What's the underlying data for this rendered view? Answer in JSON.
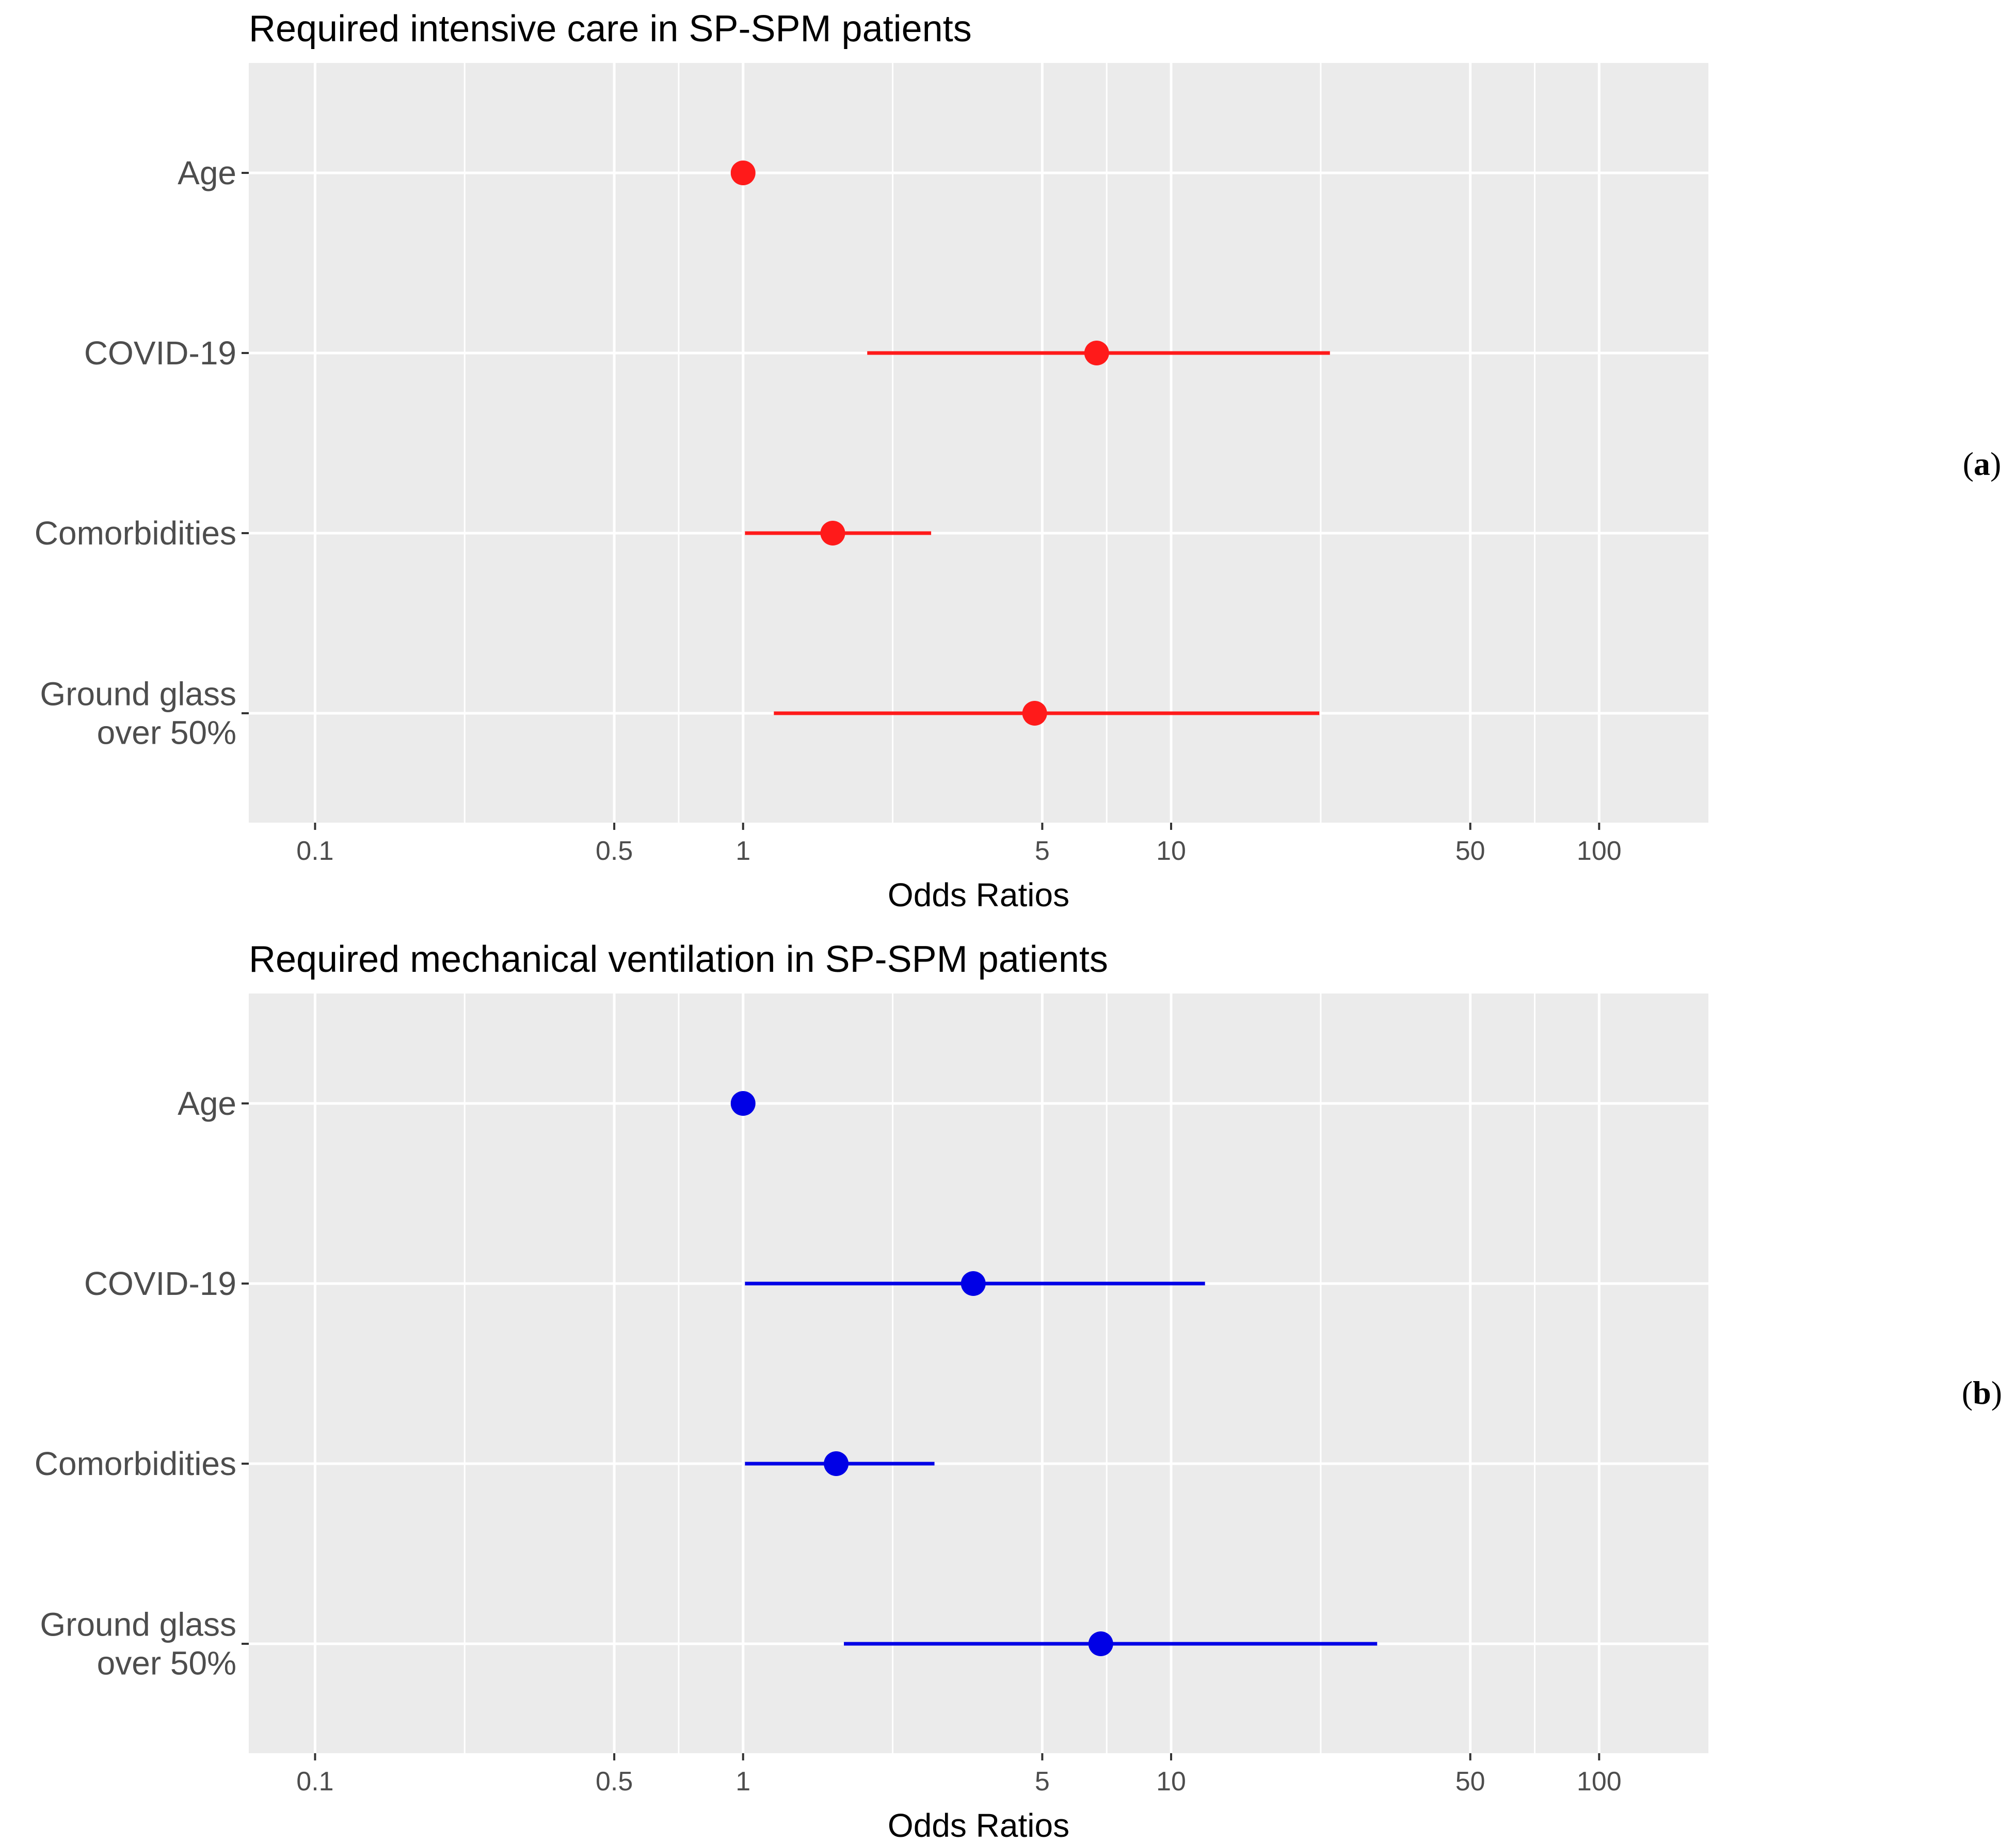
{
  "chart_data": [
    {
      "type": "forest",
      "panel_label": "a",
      "title": "Required intensive care in SP-SPM patients",
      "xlabel": "Odds Ratios",
      "xscale": "log10",
      "xlim": [
        0.07,
        180
      ],
      "xticks": [
        0.1,
        0.5,
        1,
        5,
        10,
        50,
        100
      ],
      "xtick_labels": [
        "0.1",
        "0.5",
        "1",
        "5",
        "10",
        "50",
        "100"
      ],
      "color": "#ff1a1a",
      "grid": true,
      "rows": [
        {
          "label": [
            "Age"
          ],
          "or": 1.0,
          "lo": 1.0,
          "hi": 1.0
        },
        {
          "label": [
            "COVID-19"
          ],
          "or": 6.7,
          "lo": 1.95,
          "hi": 23.5
        },
        {
          "label": [
            "Comorbidities"
          ],
          "or": 1.62,
          "lo": 1.01,
          "hi": 2.75
        },
        {
          "label": [
            "Ground glass",
            "over 50%"
          ],
          "or": 4.8,
          "lo": 1.18,
          "hi": 22.2
        }
      ]
    },
    {
      "type": "forest",
      "panel_label": "b",
      "title": "Required mechanical ventilation in SP-SPM patients",
      "xlabel": "Odds Ratios",
      "xscale": "log10",
      "xlim": [
        0.07,
        180
      ],
      "xticks": [
        0.1,
        0.5,
        1,
        5,
        10,
        50,
        100
      ],
      "xtick_labels": [
        "0.1",
        "0.5",
        "1",
        "5",
        "10",
        "50",
        "100"
      ],
      "color": "#0000e6",
      "grid": true,
      "rows": [
        {
          "label": [
            "Age"
          ],
          "or": 1.0,
          "lo": 1.0,
          "hi": 1.0
        },
        {
          "label": [
            "COVID-19"
          ],
          "or": 3.45,
          "lo": 1.01,
          "hi": 12.0
        },
        {
          "label": [
            "Comorbidities"
          ],
          "or": 1.65,
          "lo": 1.01,
          "hi": 2.8
        },
        {
          "label": [
            "Ground glass",
            "over 50%"
          ],
          "or": 6.85,
          "lo": 1.72,
          "hi": 30.3
        }
      ]
    }
  ]
}
